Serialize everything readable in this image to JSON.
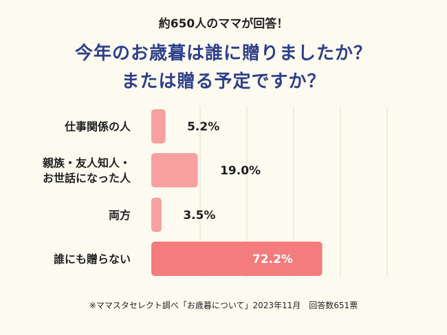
{
  "header": {
    "subtitle": "約650人のママが回答！",
    "title_line1": "今年のお歳暮は誰に贈りましたか？",
    "title_line2": "または贈る予定ですか？"
  },
  "chart_data": {
    "type": "bar",
    "orientation": "horizontal",
    "categories": [
      [
        "仕事関係の人"
      ],
      [
        "親族・友人知人・",
        "お世話になった人"
      ],
      [
        "両方"
      ],
      [
        "誰にも贈らない"
      ]
    ],
    "values": [
      5.2,
      19.0,
      3.5,
      72.2
    ],
    "value_labels": [
      "5.2%",
      "19.0%",
      "3.5%",
      "72.2%"
    ],
    "unit": "%",
    "xlim": [
      0,
      100
    ],
    "grid": true,
    "legend": "none",
    "colors": {
      "bar": "#f6a0a0",
      "bar_highlight": "#f47c7c",
      "grid": "#e2ddd0",
      "label_dark": "#1f1f1f",
      "label_light": "#ffffff"
    },
    "highlight_index": 3
  },
  "footer": {
    "note": "※ママスタセレクト調べ「お歳暮について」2023年11月　回答数651票"
  }
}
